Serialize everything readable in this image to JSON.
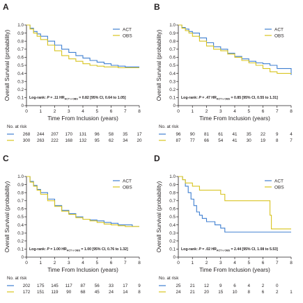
{
  "colors": {
    "act": "#3f7fd0",
    "obs": "#d8c41e",
    "axis": "#231f20"
  },
  "chart_data": [
    {
      "type": "line",
      "panel_label": "A",
      "ylabel": "Overall Survival (probability)",
      "xlabel": "Time From Inclusion (years)",
      "xlim": [
        0,
        8
      ],
      "ylim": [
        0,
        1.0
      ],
      "x_ticks": [
        "0",
        "1",
        "2",
        "3",
        "4",
        "5",
        "6",
        "7",
        "8"
      ],
      "y_ticks": [
        "0",
        "0.1",
        "0.2",
        "0.3",
        "0.4",
        "0.5",
        "0.6",
        "0.7",
        "0.8",
        "0.9",
        "1.0"
      ],
      "grid": false,
      "legend": {
        "placement": "top-right",
        "entries": [
          "ACT",
          "OBS"
        ]
      },
      "annotation": {
        "pre": "Log-rank: ",
        "p_label": "P",
        "mid": " = .11 HR",
        "sub": "ACT v OBS",
        "post": " = 0.82 [95% CI, 0.64 to 1.05]"
      },
      "risk_label": "No. at risk",
      "series": [
        {
          "name": "ACT",
          "color_key": "act",
          "x": [
            0,
            0.25,
            0.5,
            0.75,
            1,
            1.5,
            2,
            2.5,
            3,
            3.5,
            4,
            4.5,
            5,
            5.5,
            6,
            6.5,
            7,
            8
          ],
          "y": [
            1.0,
            0.96,
            0.92,
            0.89,
            0.86,
            0.8,
            0.75,
            0.7,
            0.66,
            0.62,
            0.59,
            0.56,
            0.54,
            0.52,
            0.5,
            0.49,
            0.48,
            0.48
          ],
          "at_risk": [
            "268",
            "244",
            "207",
            "170",
            "131",
            "96",
            "58",
            "35",
            "17"
          ]
        },
        {
          "name": "OBS",
          "color_key": "obs",
          "x": [
            0,
            0.25,
            0.5,
            0.75,
            1,
            1.5,
            2,
            2.5,
            3,
            3.5,
            4,
            4.5,
            5,
            5.5,
            6,
            6.5,
            7,
            8
          ],
          "y": [
            1.0,
            0.95,
            0.9,
            0.86,
            0.82,
            0.75,
            0.68,
            0.62,
            0.58,
            0.55,
            0.52,
            0.5,
            0.49,
            0.48,
            0.48,
            0.47,
            0.47,
            0.47
          ],
          "at_risk": [
            "300",
            "263",
            "222",
            "168",
            "132",
            "95",
            "62",
            "34",
            "20"
          ]
        }
      ]
    },
    {
      "type": "line",
      "panel_label": "B",
      "ylabel": "Overall Survival (probability)",
      "xlabel": "Time From Inclusion (years)",
      "xlim": [
        0,
        8
      ],
      "ylim": [
        0,
        1.0
      ],
      "x_ticks": [
        "0",
        "1",
        "2",
        "3",
        "4",
        "5",
        "6",
        "7",
        "8"
      ],
      "y_ticks": [
        "0",
        "0.1",
        "0.2",
        "0.3",
        "0.4",
        "0.5",
        "0.6",
        "0.7",
        "0.8",
        "0.9",
        "1.0"
      ],
      "grid": false,
      "legend": {
        "placement": "top-right",
        "entries": [
          "ACT",
          "OBS"
        ]
      },
      "annotation": {
        "pre": "Log-rank: ",
        "p_label": "P",
        "mid": " = .47 HR",
        "sub": "ACT v OBS",
        "post": " = 0.85 [95% CI, 0.55 to 1.31]"
      },
      "risk_label": "No. at risk",
      "series": [
        {
          "name": "ACT",
          "color_key": "act",
          "x": [
            0,
            0.25,
            0.5,
            0.75,
            1,
            1.5,
            2,
            2.5,
            3,
            3.5,
            4,
            4.5,
            5,
            5.5,
            6,
            6.5,
            7,
            7.5,
            8
          ],
          "y": [
            1.0,
            0.97,
            0.95,
            0.92,
            0.9,
            0.84,
            0.78,
            0.73,
            0.7,
            0.65,
            0.61,
            0.58,
            0.55,
            0.53,
            0.52,
            0.5,
            0.46,
            0.46,
            0.38
          ],
          "at_risk": [
            "96",
            "90",
            "81",
            "61",
            "41",
            "35",
            "22",
            "9",
            "4"
          ]
        },
        {
          "name": "OBS",
          "color_key": "obs",
          "x": [
            0,
            0.25,
            0.5,
            0.75,
            1,
            1.5,
            2,
            2.5,
            3,
            3.5,
            4,
            4.5,
            5,
            5.5,
            6,
            6.5,
            7,
            7.5,
            8
          ],
          "y": [
            1.0,
            0.96,
            0.93,
            0.9,
            0.86,
            0.8,
            0.74,
            0.7,
            0.68,
            0.64,
            0.6,
            0.56,
            0.53,
            0.5,
            0.46,
            0.42,
            0.4,
            0.4,
            0.4
          ],
          "at_risk": [
            "87",
            "77",
            "66",
            "54",
            "41",
            "30",
            "19",
            "8",
            "7"
          ]
        }
      ]
    },
    {
      "type": "line",
      "panel_label": "C",
      "ylabel": "Overall Survival (probability)",
      "xlabel": "Time From Inclusion (years)",
      "xlim": [
        0,
        8
      ],
      "ylim": [
        0,
        1.0
      ],
      "x_ticks": [
        "0",
        "1",
        "2",
        "3",
        "4",
        "5",
        "6",
        "7",
        "8"
      ],
      "y_ticks": [
        "0",
        "0.1",
        "0.2",
        "0.3",
        "0.4",
        "0.5",
        "0.6",
        "0.7",
        "0.8",
        "0.9",
        "1.0"
      ],
      "grid": false,
      "legend": {
        "placement": "top-right",
        "entries": [
          "ACT",
          "OBS"
        ]
      },
      "annotation": {
        "pre": "Log-rank: ",
        "p_label": "P",
        "mid": " = 1.00 HR",
        "sub": "ACT v OBS",
        "post": " = 1.00 [95% CI, 0.76 to 1.32]"
      },
      "risk_label": "No. at risk",
      "series": [
        {
          "name": "ACT",
          "color_key": "act",
          "x": [
            0,
            0.25,
            0.5,
            0.75,
            1,
            1.5,
            2,
            2.5,
            3,
            3.5,
            4,
            4.5,
            5,
            5.5,
            6,
            6.5,
            7,
            7.5,
            8
          ],
          "y": [
            1.0,
            0.94,
            0.89,
            0.84,
            0.8,
            0.72,
            0.64,
            0.58,
            0.54,
            0.5,
            0.47,
            0.46,
            0.45,
            0.43,
            0.42,
            0.4,
            0.4,
            0.38,
            0.38
          ],
          "at_risk": [
            "202",
            "175",
            "145",
            "117",
            "87",
            "56",
            "33",
            "17",
            "9"
          ]
        },
        {
          "name": "OBS",
          "color_key": "obs",
          "x": [
            0,
            0.25,
            0.5,
            0.75,
            1,
            1.5,
            2,
            2.5,
            3,
            3.5,
            4,
            4.5,
            5,
            5.5,
            6,
            6.5,
            7,
            7.5,
            8
          ],
          "y": [
            1.0,
            0.93,
            0.88,
            0.83,
            0.78,
            0.7,
            0.63,
            0.57,
            0.53,
            0.49,
            0.47,
            0.45,
            0.43,
            0.41,
            0.4,
            0.39,
            0.38,
            0.38,
            0.38
          ],
          "at_risk": [
            "172",
            "151",
            "119",
            "90",
            "68",
            "45",
            "24",
            "14",
            "8"
          ]
        }
      ]
    },
    {
      "type": "line",
      "panel_label": "D",
      "ylabel": "Overall Survival (probability)",
      "xlabel": "Time From Inclusion (years)",
      "xlim": [
        0,
        8
      ],
      "ylim": [
        0,
        1.0
      ],
      "x_ticks": [
        "0",
        "1",
        "2",
        "3",
        "4",
        "5",
        "6",
        "7",
        "8"
      ],
      "y_ticks": [
        "0",
        "0.1",
        "0.2",
        "0.3",
        "0.4",
        "0.5",
        "0.6",
        "0.7",
        "0.8",
        "0.9",
        "1.0"
      ],
      "grid": false,
      "legend": {
        "placement": "top-right",
        "entries": [
          "ACT",
          "OBS"
        ]
      },
      "annotation": {
        "pre": "Log-rank: ",
        "p_label": "P",
        "mid": " = .02 HR",
        "sub": "ACT v OBS",
        "post": " = 2.44 [95% CI, 1.08 to 5.53]"
      },
      "risk_label": "No. at risk",
      "series": [
        {
          "name": "ACT",
          "color_key": "act",
          "x": [
            0,
            0.3,
            0.5,
            0.7,
            0.9,
            1.1,
            1.3,
            1.5,
            1.7,
            2.0,
            2.3,
            2.6,
            3.0,
            3.3,
            4,
            5,
            6,
            7,
            8
          ],
          "y": [
            1.0,
            0.96,
            0.88,
            0.8,
            0.72,
            0.64,
            0.56,
            0.52,
            0.48,
            0.44,
            0.44,
            0.4,
            0.36,
            0.31,
            0.31,
            0.31,
            0.31,
            0.31,
            0.31
          ],
          "at_risk": [
            "25",
            "21",
            "12",
            "9",
            "6",
            "4",
            "2",
            "0",
            ""
          ]
        },
        {
          "name": "OBS",
          "color_key": "obs",
          "x": [
            0,
            0.3,
            0.5,
            1.0,
            1.5,
            2.0,
            2.5,
            3.0,
            3.3,
            4.0,
            5.0,
            5.7,
            6.2,
            6.5,
            6.6,
            7,
            8
          ],
          "y": [
            1.0,
            0.96,
            0.92,
            0.88,
            0.83,
            0.83,
            0.83,
            0.78,
            0.7,
            0.7,
            0.7,
            0.7,
            0.7,
            0.52,
            0.35,
            0.35,
            0.35
          ],
          "at_risk": [
            "24",
            "21",
            "20",
            "15",
            "10",
            "8",
            "6",
            "2",
            "1"
          ]
        }
      ]
    }
  ]
}
